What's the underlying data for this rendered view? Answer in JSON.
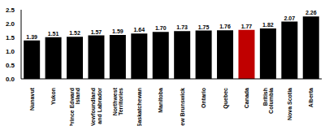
{
  "chart_data": {
    "type": "bar",
    "categories": [
      "Nunavut",
      "Yukon",
      "Prince Edward Island",
      "Newfoundland and Labrador",
      "Northwest Territories",
      "Saskatchewan",
      "Manitoba",
      "New Brunswick",
      "Ontario",
      "Quebec",
      "Canada",
      "British Columbia",
      "Nova Scotia",
      "Alberta"
    ],
    "values": [
      1.39,
      1.51,
      1.52,
      1.57,
      1.59,
      1.64,
      1.7,
      1.73,
      1.75,
      1.76,
      1.77,
      1.82,
      2.07,
      2.26
    ],
    "value_labels": [
      "1.39",
      "1.51",
      "1.52",
      "1.57",
      "1.59",
      "1.64",
      "1.70",
      "1.73",
      "1.75",
      "1.76",
      "1.77",
      "1.82",
      "2.07",
      "2.26"
    ],
    "colors": [
      "#000000",
      "#000000",
      "#000000",
      "#000000",
      "#000000",
      "#000000",
      "#000000",
      "#000000",
      "#000000",
      "#000000",
      "#c00000",
      "#000000",
      "#000000",
      "#000000"
    ],
    "ylim": [
      0,
      2.5
    ],
    "yticks": [
      {
        "value": 0,
        "label": "0.0"
      },
      0.5,
      {
        "value": 1,
        "label": "1.0"
      },
      1.5,
      {
        "value": 2,
        "label": "2.0"
      },
      2.5
    ],
    "data_labels": true,
    "grid": false
  }
}
